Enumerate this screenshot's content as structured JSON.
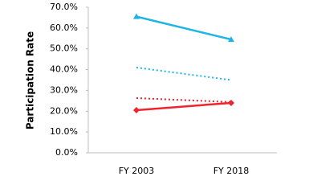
{
  "chart_data": {
    "type": "line",
    "y_label": "Participation Rate",
    "categories": [
      "FY 2003",
      "FY 2018"
    ],
    "series": [
      {
        "color": "#1fb4e8",
        "dash": "solid",
        "marker": "triangle",
        "values": [
          65.5,
          54.5
        ]
      },
      {
        "color": "#1fb4e8",
        "dash": "dotted",
        "marker": "none",
        "values": [
          41,
          35
        ]
      },
      {
        "color": "#f0242c",
        "dash": "dotted",
        "marker": "none",
        "values": [
          26.3,
          24.4
        ]
      },
      {
        "color": "#f0242c",
        "dash": "solid",
        "marker": "diamond",
        "values": [
          20.5,
          24
        ]
      }
    ],
    "ylim": [
      0,
      70
    ],
    "yticks": [
      {
        "value": 0,
        "label": "0.0%"
      },
      {
        "value": 10,
        "label": "10.0%"
      },
      {
        "value": 20,
        "label": "20.0%"
      },
      {
        "value": 30,
        "label": "30.0%"
      },
      {
        "value": 40,
        "label": "40.0%"
      },
      {
        "value": 50,
        "label": "50.0%"
      },
      {
        "value": 60,
        "label": "60.0%"
      },
      {
        "value": 70,
        "label": "70.0%"
      }
    ],
    "grid": false
  }
}
